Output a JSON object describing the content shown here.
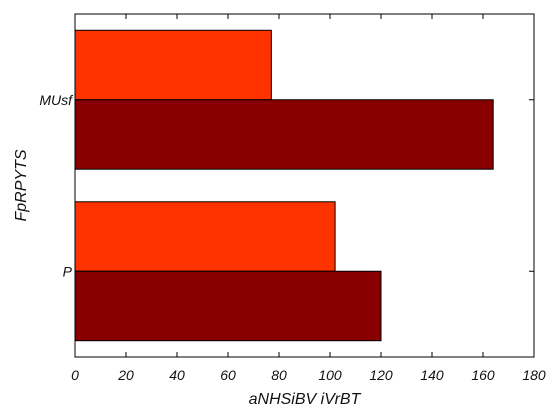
{
  "chart_data": {
    "type": "bar",
    "orientation": "horizontal",
    "categories": [
      "P",
      "MUsf"
    ],
    "series": [
      {
        "color": "#ff3300",
        "values": [
          102,
          77
        ]
      },
      {
        "color": "#880000",
        "values": [
          120,
          164
        ]
      }
    ],
    "xlabel": "aNHSiBV iVrBT",
    "ylabel": "FpRPYTS",
    "xlim": [
      0,
      180
    ],
    "xticks": [
      0,
      20,
      40,
      60,
      80,
      100,
      120,
      140,
      160,
      180
    ],
    "grid": false,
    "legend": "none"
  }
}
